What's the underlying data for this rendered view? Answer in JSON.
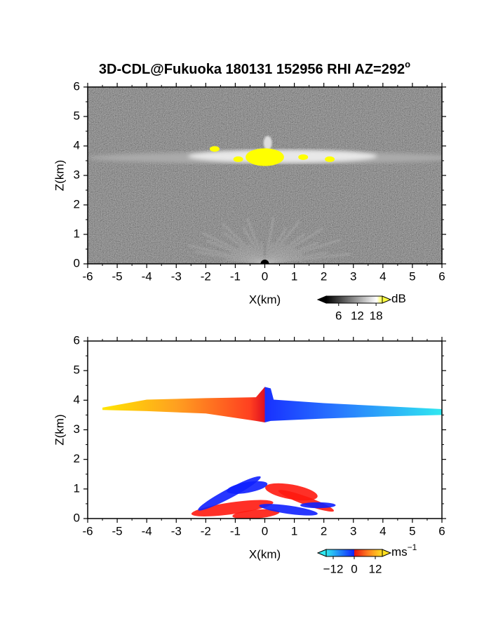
{
  "chart_data": [
    {
      "type": "heatmap",
      "title": "3D-CDL@Fukuoka 180131 152956 RHI AZ=292",
      "title_superscript": "o",
      "xlabel": "X(km)",
      "ylabel": "Z(km)",
      "xlim": [
        -6,
        6
      ],
      "xticks": [
        -6,
        -5,
        -4,
        -3,
        -2,
        -1,
        0,
        1,
        2,
        3,
        4,
        5,
        6
      ],
      "ylim": [
        0,
        6
      ],
      "yticks": [
        0,
        1,
        2,
        3,
        4,
        5,
        6
      ],
      "colorbar": {
        "unit": "dB",
        "clim": [
          2,
          20
        ],
        "ticks": [
          6,
          12,
          18
        ]
      }
    },
    {
      "type": "heatmap",
      "xlabel": "X(km)",
      "ylabel": "Z(km)",
      "xlim": [
        -6,
        6
      ],
      "xticks": [
        -6,
        -5,
        -4,
        -3,
        -2,
        -1,
        0,
        1,
        2,
        3,
        4,
        5,
        6
      ],
      "ylim": [
        0,
        6
      ],
      "yticks": [
        0,
        1,
        2,
        3,
        4,
        5,
        6
      ],
      "colorbar": {
        "unit": "ms",
        "unit_superscript": "−1",
        "clim": [
          -16,
          16
        ],
        "ticks": [
          {
            "value": -12,
            "label": "−12"
          },
          0,
          12
        ]
      }
    }
  ]
}
